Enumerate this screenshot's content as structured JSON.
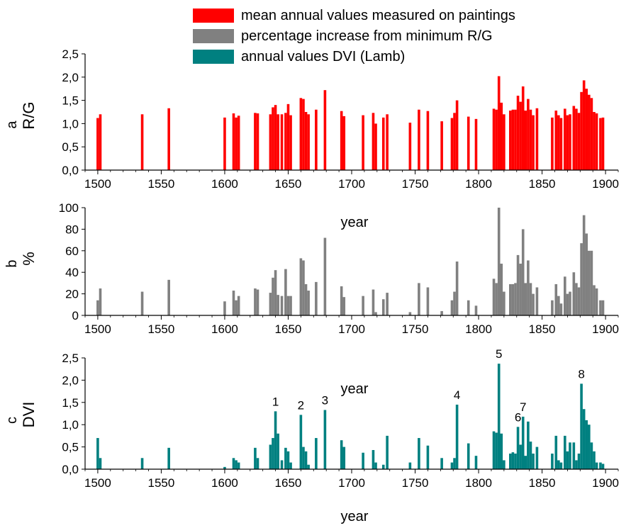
{
  "legend": {
    "items": [
      {
        "label": "mean annual values measured on paintings",
        "color": "#ff0000"
      },
      {
        "label": "percentage increase from minimum R/G",
        "color": "#808080"
      },
      {
        "label": "annual values DVI (Lamb)",
        "color": "#008080"
      }
    ]
  },
  "chart_data": [
    {
      "type": "bar",
      "panel_letter": "a",
      "ylabel": "R/G",
      "xlabel": "",
      "xlim": [
        1490,
        1910
      ],
      "ylim": [
        0,
        2.5
      ],
      "xticks": [
        1500,
        1550,
        1600,
        1650,
        1700,
        1750,
        1800,
        1850,
        1900
      ],
      "yticks": [
        0,
        0.5,
        1.0,
        1.5,
        2.0,
        2.5
      ],
      "ytick_labels": [
        "0,0",
        "0,5",
        "1,0",
        "1,5",
        "2,0",
        "2,5"
      ],
      "color": "#ff0000",
      "grid": false,
      "x": [
        1500,
        1502,
        1535,
        1556,
        1600,
        1607,
        1609,
        1611,
        1624,
        1626,
        1636,
        1638,
        1640,
        1642,
        1645,
        1648,
        1650,
        1652,
        1660,
        1662,
        1664,
        1666,
        1672,
        1679,
        1692,
        1694,
        1709,
        1717,
        1719,
        1725,
        1728,
        1746,
        1753,
        1760,
        1771,
        1779,
        1781,
        1783,
        1792,
        1798,
        1812,
        1814,
        1816,
        1818,
        1820,
        1825,
        1827,
        1829,
        1831,
        1833,
        1835,
        1837,
        1839,
        1841,
        1843,
        1846,
        1858,
        1861,
        1863,
        1865,
        1868,
        1870,
        1872,
        1875,
        1877,
        1879,
        1881,
        1883,
        1885,
        1887,
        1889,
        1891,
        1893,
        1896,
        1898
      ],
      "values": [
        1.12,
        1.2,
        1.2,
        1.33,
        1.13,
        1.22,
        1.13,
        1.17,
        1.23,
        1.22,
        1.2,
        1.35,
        1.4,
        1.2,
        1.2,
        1.23,
        1.42,
        1.18,
        1.55,
        1.53,
        1.25,
        1.2,
        1.3,
        1.72,
        1.27,
        1.16,
        1.18,
        1.23,
        1.0,
        1.13,
        1.2,
        1.02,
        1.3,
        1.27,
        1.05,
        1.12,
        1.23,
        1.5,
        1.15,
        1.1,
        1.32,
        1.3,
        2.02,
        1.45,
        1.2,
        1.28,
        1.3,
        1.3,
        1.6,
        1.47,
        1.8,
        1.28,
        1.53,
        1.3,
        1.18,
        1.33,
        1.13,
        1.28,
        1.18,
        1.12,
        1.32,
        1.18,
        1.2,
        1.38,
        1.32,
        1.23,
        1.68,
        1.93,
        1.75,
        1.62,
        1.55,
        1.25,
        1.22,
        1.12,
        1.13
      ]
    },
    {
      "type": "bar",
      "panel_letter": "b",
      "ylabel": "%",
      "xlabel": "year",
      "xlim": [
        1490,
        1910
      ],
      "ylim": [
        0,
        100
      ],
      "xticks": [
        1500,
        1550,
        1600,
        1650,
        1700,
        1750,
        1800,
        1850,
        1900
      ],
      "yticks": [
        0,
        20,
        40,
        60,
        80,
        100
      ],
      "ytick_labels": [
        "0",
        "20",
        "40",
        "60",
        "80",
        "100"
      ],
      "color": "#808080",
      "grid": false,
      "x": [
        1500,
        1502,
        1535,
        1556,
        1600,
        1607,
        1609,
        1611,
        1624,
        1626,
        1636,
        1638,
        1640,
        1642,
        1645,
        1648,
        1650,
        1652,
        1660,
        1662,
        1664,
        1666,
        1672,
        1679,
        1692,
        1694,
        1709,
        1717,
        1719,
        1725,
        1728,
        1746,
        1753,
        1760,
        1771,
        1779,
        1781,
        1783,
        1792,
        1798,
        1812,
        1814,
        1816,
        1818,
        1820,
        1825,
        1827,
        1829,
        1831,
        1833,
        1835,
        1837,
        1839,
        1841,
        1843,
        1846,
        1858,
        1861,
        1863,
        1865,
        1868,
        1870,
        1872,
        1875,
        1877,
        1879,
        1881,
        1883,
        1885,
        1887,
        1889,
        1891,
        1893,
        1896,
        1898
      ],
      "values": [
        14,
        25,
        22,
        33,
        13,
        23,
        14,
        18,
        25,
        24,
        21,
        35,
        42,
        19,
        18,
        43,
        18,
        18,
        53,
        51,
        29,
        23,
        31,
        72,
        27,
        17,
        18,
        24,
        3,
        15,
        21,
        3,
        30,
        26,
        4,
        14,
        22,
        50,
        14,
        9,
        34,
        30,
        100,
        48,
        22,
        29,
        29,
        30,
        56,
        48,
        80,
        30,
        51,
        30,
        20,
        26,
        14,
        29,
        18,
        11,
        36,
        20,
        22,
        40,
        30,
        26,
        67,
        93,
        76,
        60,
        60,
        28,
        25,
        14,
        14
      ]
    },
    {
      "type": "bar",
      "panel_letter": "c",
      "ylabel": "DVI",
      "xlabel": "year",
      "xlim": [
        1490,
        1910
      ],
      "ylim": [
        0,
        2.5
      ],
      "xticks": [
        1500,
        1550,
        1600,
        1650,
        1700,
        1750,
        1800,
        1850,
        1900
      ],
      "yticks": [
        0,
        0.5,
        1.0,
        1.5,
        2.0,
        2.5
      ],
      "ytick_labels": [
        "0,0",
        "0,5",
        "1,0",
        "1,5",
        "2,0",
        "2,5"
      ],
      "color": "#008080",
      "grid": false,
      "x": [
        1500,
        1502,
        1535,
        1556,
        1600,
        1607,
        1609,
        1611,
        1624,
        1626,
        1636,
        1638,
        1640,
        1642,
        1645,
        1648,
        1650,
        1652,
        1660,
        1662,
        1664,
        1666,
        1672,
        1679,
        1692,
        1694,
        1709,
        1717,
        1719,
        1725,
        1728,
        1746,
        1753,
        1760,
        1771,
        1779,
        1781,
        1783,
        1792,
        1798,
        1812,
        1814,
        1816,
        1818,
        1820,
        1825,
        1827,
        1829,
        1831,
        1833,
        1835,
        1837,
        1839,
        1841,
        1843,
        1846,
        1858,
        1861,
        1863,
        1865,
        1868,
        1870,
        1872,
        1875,
        1877,
        1879,
        1881,
        1883,
        1885,
        1887,
        1889,
        1891,
        1893,
        1896,
        1898
      ],
      "values": [
        0.7,
        0.25,
        0.25,
        0.48,
        0.05,
        0.25,
        0.2,
        0.15,
        0.48,
        0.25,
        0.55,
        0.7,
        1.3,
        0.8,
        0.2,
        0.48,
        0.4,
        0.15,
        1.22,
        0.5,
        0.4,
        0.1,
        0.7,
        1.33,
        0.65,
        0.5,
        0.37,
        0.43,
        0.15,
        0.1,
        0.75,
        0.15,
        0.7,
        0.53,
        0.25,
        0.15,
        0.25,
        1.45,
        0.58,
        0.3,
        0.85,
        0.82,
        2.37,
        0.8,
        0.2,
        0.35,
        0.38,
        0.35,
        0.95,
        0.55,
        1.18,
        0.3,
        1.07,
        0.62,
        0.35,
        0.5,
        0.35,
        0.75,
        0.2,
        0.15,
        0.75,
        0.4,
        0.6,
        0.6,
        0.2,
        0.35,
        1.92,
        1.35,
        1.1,
        1.0,
        0.6,
        0.4,
        0.15,
        0.15,
        0.12
      ]
    }
  ],
  "events": [
    {
      "label": "1",
      "x": 1640,
      "value": 1.3
    },
    {
      "label": "2",
      "x": 1660,
      "value": 1.22
    },
    {
      "label": "3",
      "x": 1679,
      "value": 1.33
    },
    {
      "label": "4",
      "x": 1783,
      "value": 1.45
    },
    {
      "label": "5",
      "x": 1816,
      "value": 2.37
    },
    {
      "label": "6",
      "x": 1831,
      "value": 0.95
    },
    {
      "label": "7",
      "x": 1835,
      "value": 1.18
    },
    {
      "label": "8",
      "x": 1881,
      "value": 1.92
    }
  ]
}
